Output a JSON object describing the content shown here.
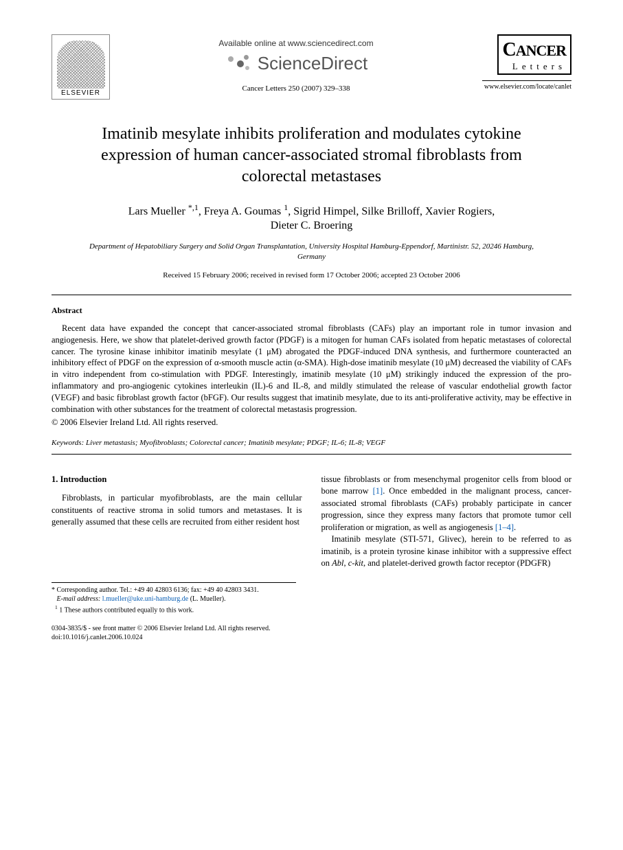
{
  "header": {
    "elsevier_label": "ELSEVIER",
    "available_online": "Available online at www.sciencedirect.com",
    "sciencedirect": "ScienceDirect",
    "journal_ref": "Cancer Letters 250 (2007) 329–338",
    "cancer_word": "ANCER",
    "cancer_initial": "C",
    "letters_word": "Letters",
    "journal_url": "www.elsevier.com/locate/canlet"
  },
  "title": "Imatinib mesylate inhibits proliferation and modulates cytokine expression of human cancer-associated stromal fibroblasts from colorectal metastases",
  "authors_line1": "Lars Mueller *,1, Freya A. Goumas 1, Sigrid Himpel, Silke Brilloff, Xavier Rogiers,",
  "authors_line2": "Dieter C. Broering",
  "affiliation": "Department of Hepatobiliary Surgery and Solid Organ Transplantation, University Hospital Hamburg-Eppendorf, Martinistr. 52, 20246 Hamburg, Germany",
  "dates": "Received 15 February 2006; received in revised form 17 October 2006; accepted 23 October 2006",
  "abstract": {
    "heading": "Abstract",
    "body": "Recent data have expanded the concept that cancer-associated stromal fibroblasts (CAFs) play an important role in tumor invasion and angiogenesis. Here, we show that platelet-derived growth factor (PDGF) is a mitogen for human CAFs isolated from hepatic metastases of colorectal cancer. The tyrosine kinase inhibitor imatinib mesylate (1 μM) abrogated the PDGF-induced DNA synthesis, and furthermore counteracted an inhibitory effect of PDGF on the expression of α-smooth muscle actin (α-SMA). High-dose imatinib mesylate (10 μM) decreased the viability of CAFs in vitro independent from co-stimulation with PDGF. Interestingly, imatinib mesylate (10 μM) strikingly induced the expression of the pro-inflammatory and pro-angiogenic cytokines interleukin (IL)-6 and IL-8, and mildly stimulated the release of vascular endothelial growth factor (VEGF) and basic fibroblast growth factor (bFGF). Our results suggest that imatinib mesylate, due to its anti-proliferative activity, may be effective in combination with other substances for the treatment of colorectal metastasis progression.",
    "copyright": "© 2006 Elsevier Ireland Ltd. All rights reserved."
  },
  "keywords": {
    "label": "Keywords:",
    "list": "Liver metastasis; Myofibroblasts; Colorectal cancer; Imatinib mesylate; PDGF; IL-6; IL-8; VEGF"
  },
  "intro": {
    "heading": "1. Introduction",
    "col1_p1": "Fibroblasts, in particular myofibroblasts, are the main cellular constituents of reactive stroma in solid tumors and metastases. It is generally assumed that these cells are recruited from either resident host",
    "col2_p1a": "tissue fibroblasts or from mesenchymal progenitor cells from blood or bone marrow ",
    "col2_ref1": "[1]",
    "col2_p1b": ". Once embedded in the malignant process, cancer-associated stromal fibroblasts (CAFs) probably participate in cancer progression, since they express many factors that promote tumor cell proliferation or migration, as well as angiogenesis ",
    "col2_ref2": "[1–4]",
    "col2_p1c": ".",
    "col2_p2a": "Imatinib mesylate (STI-571, Glivec), herein to be referred to as imatinib, is a protein tyrosine kinase inhibitor with a suppressive effect on ",
    "col2_ital1": "Abl",
    "col2_p2b": ", ",
    "col2_ital2": "c-kit",
    "col2_p2c": ", and platelet-derived growth factor receptor (PDGFR)"
  },
  "footnotes": {
    "corresponding": "* Corresponding author. Tel.: +49 40 42803 6136; fax: +49 40 42803 3431.",
    "email_label": "E-mail address:",
    "email": "l.mueller@uke.uni-hamburg.de",
    "email_suffix": "(L. Mueller).",
    "equal": "1 These authors contributed equally to this work."
  },
  "footer": {
    "line1": "0304-3835/$ - see front matter © 2006 Elsevier Ireland Ltd. All rights reserved.",
    "line2": "doi:10.1016/j.canlet.2006.10.024"
  }
}
